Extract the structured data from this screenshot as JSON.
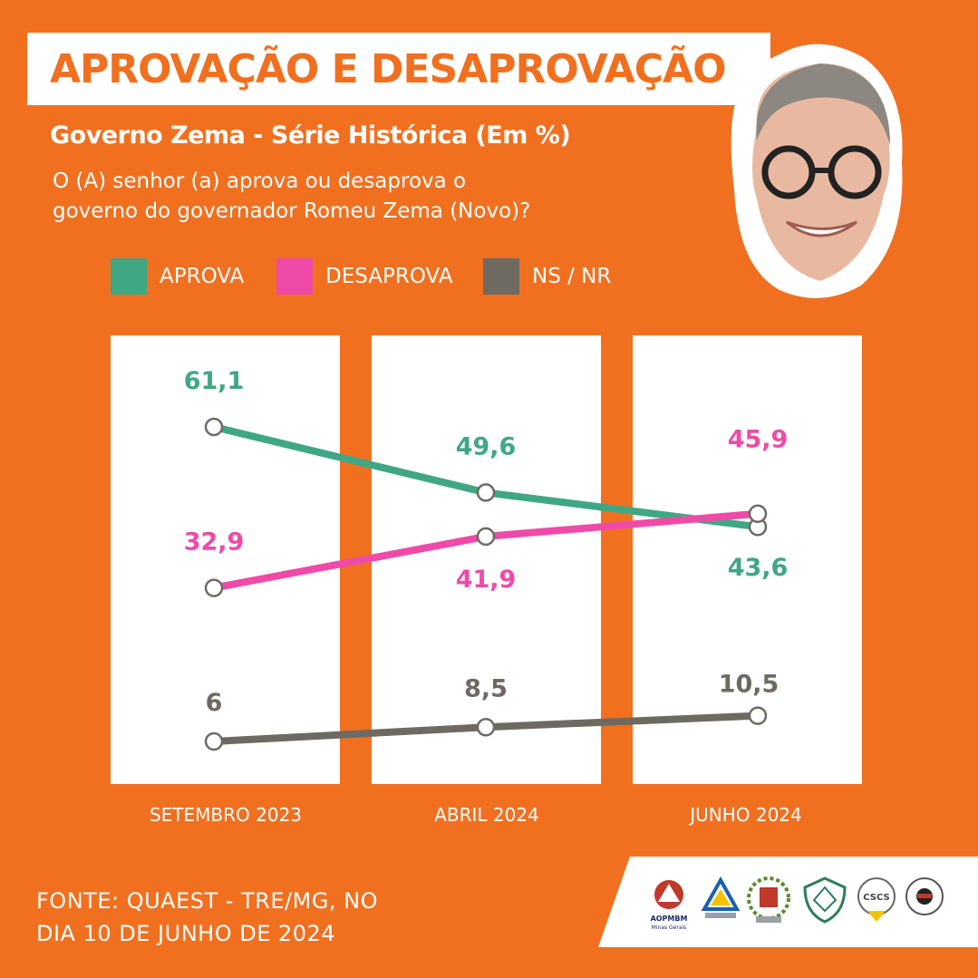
{
  "header": {
    "title": "APROVAÇÃO E DESAPROVAÇÃO",
    "subtitle": "Governo Zema - Série Histórica (Em %)",
    "question_line1": "O (A) senhor (a) aprova ou desaprova o",
    "question_line2": "governo do governador Romeu Zema (Novo)?"
  },
  "legend": [
    {
      "label": "APROVA",
      "color": "#3fa784"
    },
    {
      "label": "DESAPROVA",
      "color": "#f04aa8"
    },
    {
      "label": "NS / NR",
      "color": "#6e6a62"
    }
  ],
  "chart_data": {
    "type": "line",
    "title": "APROVAÇÃO E DESAPROVAÇÃO",
    "subtitle": "Governo Zema - Série Histórica (Em %)",
    "categories": [
      "SETEMBRO 2023",
      "ABRIL 2024",
      "JUNHO 2024"
    ],
    "series": [
      {
        "name": "APROVA",
        "color": "#3fa784",
        "values": [
          61.1,
          49.6,
          43.6
        ],
        "labels": [
          "61,1",
          "49,6",
          "43,6"
        ]
      },
      {
        "name": "DESAPROVA",
        "color": "#f04aa8",
        "values": [
          32.9,
          41.9,
          45.9
        ],
        "labels": [
          "32,9",
          "41,9",
          "45,9"
        ]
      },
      {
        "name": "NS / NR",
        "color": "#6e6a62",
        "values": [
          6,
          8.5,
          10.5
        ],
        "labels": [
          "6",
          "8,5",
          "10,5"
        ]
      }
    ],
    "grid": false,
    "legend_position": "top-left"
  },
  "footer": {
    "source_line1": "FONTE: QUAEST - TRE/MG, NO",
    "source_line2": "DIA 10 DE JUNHO DE 2024",
    "logo_texts": [
      "AOPMBM",
      "Minas Gerais",
      "CSCS"
    ]
  },
  "colors": {
    "background": "#f07020",
    "panel": "#ffffff",
    "title": "#f07020"
  }
}
